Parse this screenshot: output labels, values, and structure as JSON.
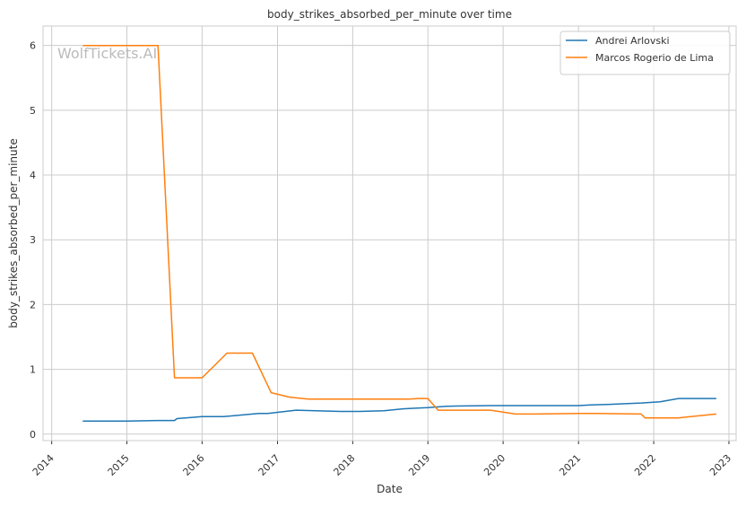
{
  "chart_data": {
    "type": "line",
    "title": "body_strikes_absorbed_per_minute over time",
    "xlabel": "Date",
    "ylabel": "body_strikes_absorbed_per_minute",
    "watermark": "WolfTickets.AI",
    "x_ticks": [
      "2014",
      "2015",
      "2016",
      "2017",
      "2018",
      "2019",
      "2020",
      "2021",
      "2022",
      "2023"
    ],
    "y_ticks": [
      "0",
      "1",
      "2",
      "3",
      "4",
      "5",
      "6"
    ],
    "xlim": [
      "2013-11-20",
      "2023-02-05"
    ],
    "ylim": [
      -0.1,
      6.3
    ],
    "grid": true,
    "legend_position": "top-right",
    "colors": {
      "Andrei Arlovski": "#1f77b4",
      "Marcos Rogerio de Lima": "#ff7f0e"
    },
    "series": [
      {
        "name": "Andrei Arlovski",
        "x": [
          "2014-06-01",
          "2015-01-01",
          "2015-06-01",
          "2015-08-20",
          "2015-09-01",
          "2016-01-01",
          "2016-04-15",
          "2016-10-01",
          "2016-11-15",
          "2017-04-01",
          "2017-11-01",
          "2018-02-01",
          "2018-06-01",
          "2018-09-01",
          "2018-11-01",
          "2019-01-01",
          "2019-04-01",
          "2019-11-01",
          "2020-03-01",
          "2020-07-01",
          "2021-01-01",
          "2021-03-01",
          "2021-06-01",
          "2021-11-01",
          "2022-02-01",
          "2022-05-01",
          "2022-11-01"
        ],
        "y": [
          0.2,
          0.2,
          0.21,
          0.21,
          0.24,
          0.27,
          0.27,
          0.32,
          0.32,
          0.37,
          0.35,
          0.35,
          0.36,
          0.39,
          0.4,
          0.41,
          0.43,
          0.44,
          0.44,
          0.44,
          0.44,
          0.45,
          0.46,
          0.48,
          0.5,
          0.55,
          0.55
        ]
      },
      {
        "name": "Marcos Rogerio de Lima",
        "x": [
          "2014-06-01",
          "2015-06-01",
          "2015-08-20",
          "2016-01-01",
          "2016-05-01",
          "2016-09-01",
          "2016-12-01",
          "2017-03-01",
          "2017-06-01",
          "2018-10-01",
          "2018-11-15",
          "2019-01-01",
          "2019-02-20",
          "2019-11-01",
          "2020-03-01",
          "2020-06-01",
          "2021-01-01",
          "2021-04-01",
          "2021-11-01",
          "2021-11-20",
          "2022-05-01",
          "2022-11-01"
        ],
        "y": [
          6.0,
          6.0,
          0.87,
          0.87,
          1.25,
          1.25,
          0.64,
          0.57,
          0.54,
          0.54,
          0.55,
          0.55,
          0.37,
          0.37,
          0.31,
          0.31,
          0.32,
          0.32,
          0.31,
          0.25,
          0.25,
          0.31
        ]
      }
    ]
  }
}
